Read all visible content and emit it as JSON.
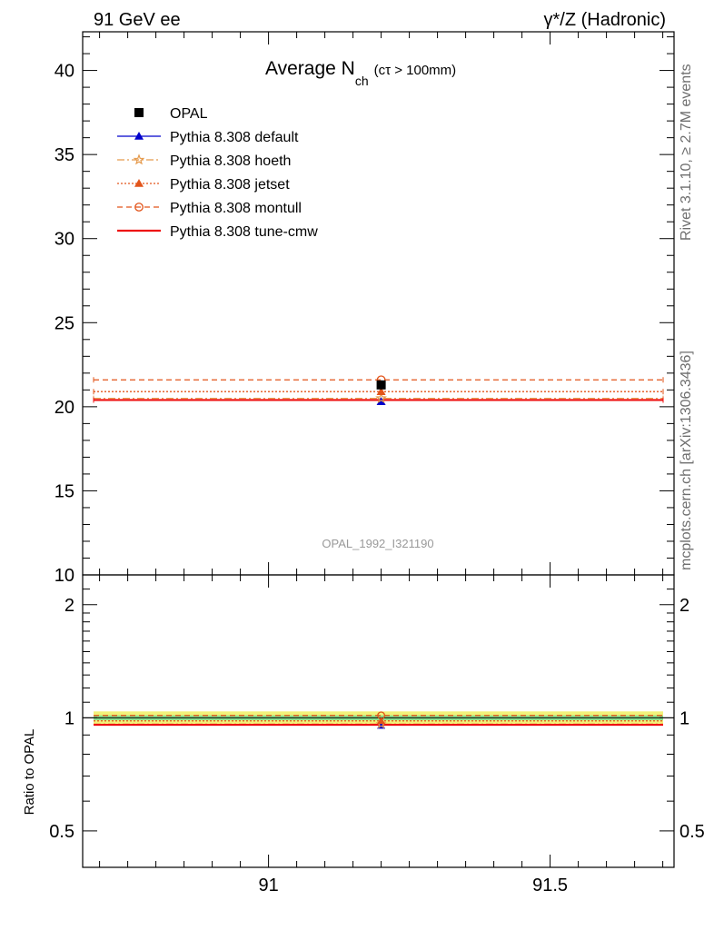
{
  "header": {
    "left": "91 GeV ee",
    "right": "γ*/Z (Hadronic)"
  },
  "title": {
    "main": "Average N",
    "sub": "ch",
    "cond": "(cτ > 100mm)"
  },
  "side_labels": {
    "rivet": "Rivet 3.1.10, ≥ 2.7M events",
    "mcplots": "mcplots.cern.ch [arXiv:1306.3436]"
  },
  "analysis_tag": "OPAL_1992_I321190",
  "ratio_ylabel": "Ratio to OPAL",
  "colors": {
    "default": "#0000cc",
    "hoeth": "#e59a4c",
    "jetset": "#e2541a",
    "montull": "#e2541a",
    "tunecmw": "#ee1111",
    "band_outer": "#f2f27a",
    "band_inner": "#8ce08c"
  },
  "legend": [
    {
      "key": "opal",
      "label": "OPAL"
    },
    {
      "key": "default",
      "label": "Pythia 8.308 default"
    },
    {
      "key": "hoeth",
      "label": "Pythia 8.308 hoeth"
    },
    {
      "key": "jetset",
      "label": "Pythia 8.308 jetset"
    },
    {
      "key": "montull",
      "label": "Pythia 8.308 montull"
    },
    {
      "key": "tunecmw",
      "label": "Pythia 8.308 tune-cmw"
    }
  ],
  "chart_data": {
    "type": "line",
    "x_range": [
      90.67,
      91.72
    ],
    "x_ticks": [
      91,
      91.5
    ],
    "x_tick_labels": [
      "91",
      "91.5"
    ],
    "main": {
      "ylim": [
        10,
        42.3
      ],
      "y_ticks": [
        10,
        15,
        20,
        25,
        30,
        35,
        40
      ],
      "y_tick_labels": [
        "10",
        "15",
        "20",
        "25",
        "30",
        "35",
        "40"
      ],
      "data_point": {
        "name": "OPAL",
        "x": 91.2,
        "y": 21.3
      },
      "series": [
        {
          "key": "default",
          "name": "Pythia 8.308 default",
          "x": [
            90.67,
            91.72
          ],
          "y": [
            20.4,
            20.4
          ],
          "marker_y": 20.3
        },
        {
          "key": "hoeth",
          "name": "Pythia 8.308 hoeth",
          "x": [
            90.67,
            91.72
          ],
          "y": [
            20.5,
            20.5
          ],
          "marker_y": 20.5
        },
        {
          "key": "jetset",
          "name": "Pythia 8.308 jetset",
          "x": [
            90.67,
            91.72
          ],
          "y": [
            20.9,
            20.9
          ],
          "marker_y": 20.9
        },
        {
          "key": "montull",
          "name": "Pythia 8.308 montull",
          "x": [
            90.67,
            91.72
          ],
          "y": [
            21.6,
            21.6
          ],
          "marker_y": 21.6
        },
        {
          "key": "tunecmw",
          "name": "Pythia 8.308 tune-cmw",
          "x": [
            90.67,
            91.72
          ],
          "y": [
            20.4,
            20.4
          ],
          "marker_y": 20.4
        }
      ]
    },
    "ratio": {
      "ylim": [
        0.4,
        2.4
      ],
      "log_scale": true,
      "y_ticks": [
        0.5,
        1,
        2
      ],
      "y_tick_labels": [
        "0.5",
        "1",
        "2"
      ],
      "band_outer": [
        0.96,
        1.04
      ],
      "band_inner": [
        0.985,
        1.015
      ],
      "series": [
        {
          "key": "default",
          "y": 0.958,
          "marker_y": 0.953
        },
        {
          "key": "hoeth",
          "y": 0.962,
          "marker_y": 0.962
        },
        {
          "key": "jetset",
          "y": 0.981,
          "marker_y": 0.981
        },
        {
          "key": "montull",
          "y": 1.014,
          "marker_y": 1.014
        },
        {
          "key": "tunecmw",
          "y": 0.958,
          "marker_y": 0.958
        }
      ]
    }
  }
}
